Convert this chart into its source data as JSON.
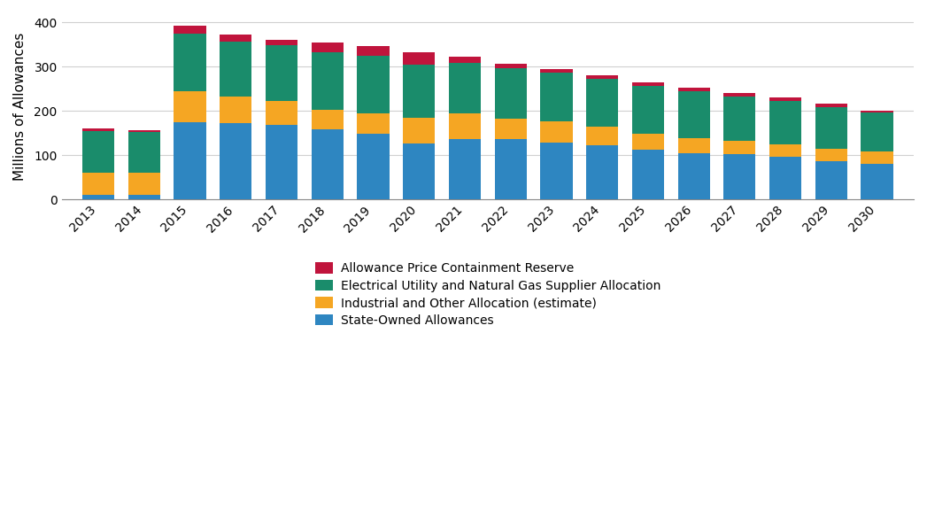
{
  "years": [
    2013,
    2014,
    2015,
    2016,
    2017,
    2018,
    2019,
    2020,
    2021,
    2022,
    2023,
    2024,
    2025,
    2026,
    2027,
    2028,
    2029,
    2030
  ],
  "state_owned": [
    10,
    10,
    175,
    172,
    168,
    158,
    148,
    127,
    137,
    137,
    129,
    122,
    113,
    104,
    103,
    97,
    86,
    81
  ],
  "industrial": [
    50,
    50,
    70,
    60,
    55,
    45,
    47,
    57,
    57,
    45,
    47,
    42,
    35,
    35,
    30,
    28,
    28,
    27
  ],
  "electrical": [
    95,
    92,
    130,
    125,
    125,
    130,
    130,
    120,
    115,
    115,
    110,
    108,
    108,
    105,
    100,
    98,
    95,
    88
  ],
  "price_containment": [
    5,
    5,
    18,
    15,
    12,
    22,
    22,
    28,
    13,
    10,
    8,
    8,
    8,
    8,
    8,
    8,
    8,
    5
  ],
  "colors": {
    "state_owned": "#2E86C1",
    "industrial": "#F5A623",
    "electrical": "#1A8C6B",
    "price_containment": "#C0143C"
  },
  "ylabel": "Millions of Allowances",
  "ylim": [
    0,
    420
  ],
  "yticks": [
    0,
    100,
    200,
    300,
    400
  ],
  "legend_labels": [
    "Allowance Price Containment Reserve",
    "Electrical Utility and Natural Gas Supplier Allocation",
    "Industrial and Other Allocation (estimate)",
    "State-Owned Allowances"
  ],
  "background_color": "#ffffff",
  "grid_color": "#d0d0d0"
}
